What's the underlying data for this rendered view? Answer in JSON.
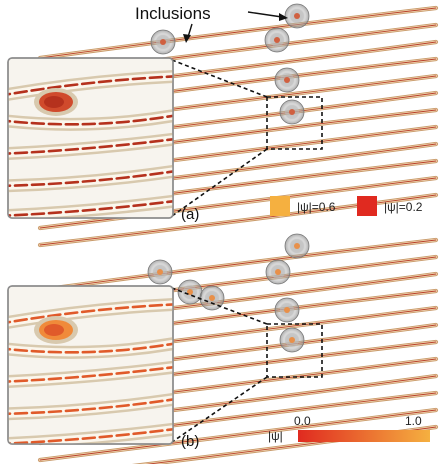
{
  "annotation": {
    "label": "Inclusions"
  },
  "panel_a": {
    "label": "(a)",
    "legend": [
      {
        "label": "|ψ|=0.6",
        "color": "#f5b040"
      },
      {
        "label": "|ψ|=0.2",
        "color": "#e02a20"
      }
    ]
  },
  "panel_b": {
    "label": "(b)",
    "colorbar": {
      "symbol": "|ψ|",
      "min_label": "0.0",
      "max_label": "1.0",
      "color_min": "#e02a20",
      "color_max": "#f5b040"
    }
  },
  "colors": {
    "fiber_outer": "#c89a6a",
    "fiber_inner": "#f2d9b4",
    "fiber_core": "#b8402a",
    "inclusion": "#9a9a9a",
    "inset_bg": "#f7f4ee"
  }
}
